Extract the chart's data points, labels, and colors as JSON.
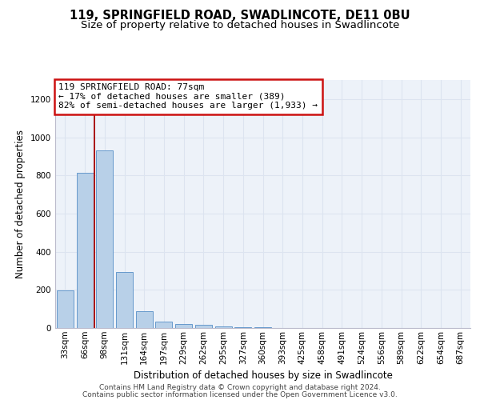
{
  "title": "119, SPRINGFIELD ROAD, SWADLINCOTE, DE11 0BU",
  "subtitle": "Size of property relative to detached houses in Swadlincote",
  "xlabel": "Distribution of detached houses by size in Swadlincote",
  "ylabel": "Number of detached properties",
  "footnote1": "Contains HM Land Registry data © Crown copyright and database right 2024.",
  "footnote2": "Contains public sector information licensed under the Open Government Licence v3.0.",
  "annotation_line1": "119 SPRINGFIELD ROAD: 77sqm",
  "annotation_line2": "← 17% of detached houses are smaller (389)",
  "annotation_line3": "82% of semi-detached houses are larger (1,933) →",
  "bar_labels": [
    "33sqm",
    "66sqm",
    "98sqm",
    "131sqm",
    "164sqm",
    "197sqm",
    "229sqm",
    "262sqm",
    "295sqm",
    "327sqm",
    "360sqm",
    "393sqm",
    "425sqm",
    "458sqm",
    "491sqm",
    "524sqm",
    "556sqm",
    "589sqm",
    "622sqm",
    "654sqm",
    "687sqm"
  ],
  "bar_values": [
    197,
    812,
    930,
    295,
    90,
    35,
    20,
    15,
    10,
    5,
    3,
    2,
    1,
    1,
    0,
    0,
    0,
    0,
    0,
    0,
    0
  ],
  "bar_color": "#b8d0e8",
  "bar_edge_color": "#6699cc",
  "grid_color": "#dce4f0",
  "bg_color": "#edf2f9",
  "vline_x": 1.5,
  "vline_color": "#aa1111",
  "annotation_box_color": "#cc1111",
  "ylim": [
    0,
    1300
  ],
  "yticks": [
    0,
    200,
    400,
    600,
    800,
    1000,
    1200
  ],
  "title_fontsize": 10.5,
  "subtitle_fontsize": 9.5,
  "axis_label_fontsize": 8.5,
  "tick_fontsize": 7.5,
  "annotation_fontsize": 8,
  "footnote_fontsize": 6.5
}
